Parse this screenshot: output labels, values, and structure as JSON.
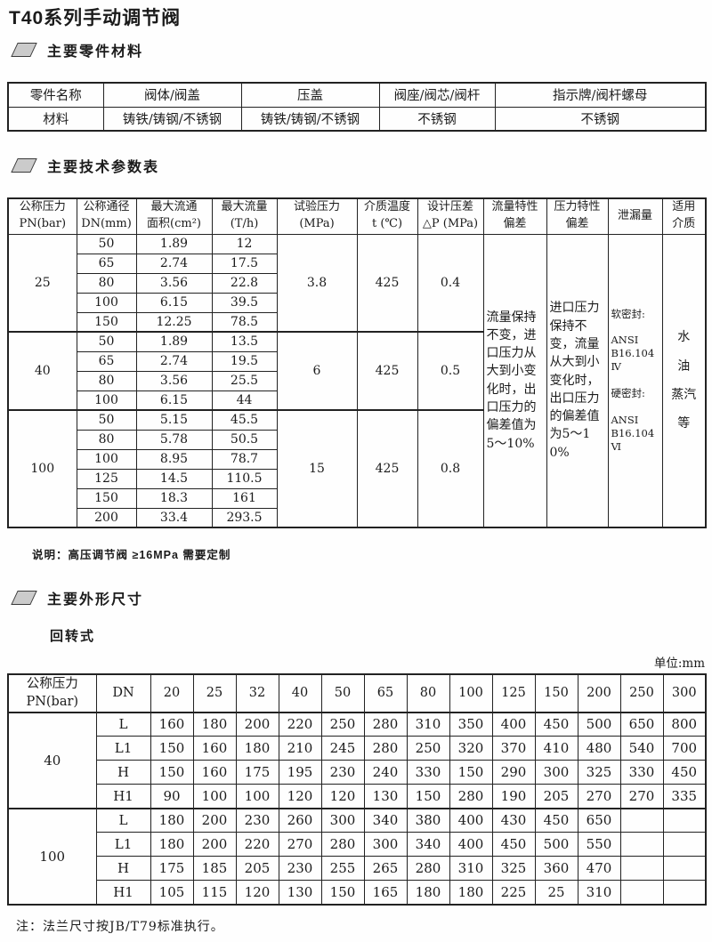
{
  "page": {
    "title": "T40系列手动调节阀",
    "unit_label": "单位:mm"
  },
  "sections": {
    "materials": {
      "heading": "主要零件材料"
    },
    "tech": {
      "heading": "主要技术参数表",
      "note": "说明：高压调节阀 ≥16MPa 需要定制"
    },
    "dims": {
      "heading": "主要外形尺寸",
      "subheading": "回转式",
      "note": "注：法兰尺寸按JB/T79标准执行。"
    }
  },
  "materials_table": {
    "rows": [
      [
        "零件名称",
        "阀体/阀盖",
        "压盖",
        "阀座/阀芯/阀杆",
        "指示牌/阀杆螺母"
      ],
      [
        "材料",
        "铸铁/铸钢/不锈钢",
        "铸铁/铸钢/不锈钢",
        "不锈钢",
        "不锈钢"
      ]
    ]
  },
  "tech_table": {
    "headers": [
      "公称压力\nPN(bar)",
      "公称通径\nDN(mm)",
      "最大流通\n面积(cm²)",
      "最大流量\n(T/h)",
      "试验压力\n(MPa)",
      "介质温度\nt (℃)",
      "设计压差\n△P (MPa)",
      "流量特性\n偏差",
      "压力特性\n偏差",
      "泄漏量",
      "适用\n介质"
    ],
    "groups": [
      {
        "pn": "25",
        "test_pressure": "3.8",
        "temp": "425",
        "dp": "0.4",
        "rows": [
          [
            "50",
            "1.89",
            "12"
          ],
          [
            "65",
            "2.74",
            "17.5"
          ],
          [
            "80",
            "3.56",
            "22.8"
          ],
          [
            "100",
            "6.15",
            "39.5"
          ],
          [
            "150",
            "12.25",
            "78.5"
          ]
        ]
      },
      {
        "pn": "40",
        "test_pressure": "6",
        "temp": "425",
        "dp": "0.5",
        "rows": [
          [
            "50",
            "1.89",
            "13.5"
          ],
          [
            "65",
            "2.74",
            "19.5"
          ],
          [
            "80",
            "3.56",
            "25.5"
          ],
          [
            "100",
            "6.15",
            "44"
          ]
        ]
      },
      {
        "pn": "100",
        "test_pressure": "15",
        "temp": "425",
        "dp": "0.8",
        "rows": [
          [
            "50",
            "5.15",
            "45.5"
          ],
          [
            "80",
            "5.78",
            "50.5"
          ],
          [
            "100",
            "8.95",
            "78.7"
          ],
          [
            "125",
            "14.5",
            "110.5"
          ],
          [
            "150",
            "18.3",
            "161"
          ],
          [
            "200",
            "33.4",
            "293.5"
          ]
        ]
      }
    ],
    "flow_deviation": "流量保持不变，进口压力从大到小变化时，出口压力的偏差值为5～10%",
    "pressure_deviation": "进口压力保持不变，流量从大到小变化时，出口压力的偏差值为5～10%",
    "leakage": "软密封:\n\nANSI\nB16.104\nⅣ\n\n硬密封:\n\nANSI\nB16.104\nⅥ",
    "media": "水\n油\n蒸汽\n等"
  },
  "dims_table": {
    "corner": "公称压力\nPN(bar)",
    "dn_label": "DN",
    "dn_values": [
      "20",
      "25",
      "32",
      "40",
      "50",
      "65",
      "80",
      "100",
      "125",
      "150",
      "200",
      "250",
      "300"
    ],
    "groups": [
      {
        "pn": "40",
        "rows": [
          {
            "label": "L",
            "values": [
              "160",
              "180",
              "200",
              "220",
              "250",
              "280",
              "310",
              "350",
              "400",
              "450",
              "500",
              "650",
              "800"
            ]
          },
          {
            "label": "L1",
            "values": [
              "150",
              "160",
              "180",
              "210",
              "245",
              "280",
              "250",
              "320",
              "370",
              "410",
              "480",
              "540",
              "700"
            ]
          },
          {
            "label": "H",
            "values": [
              "150",
              "160",
              "175",
              "195",
              "230",
              "240",
              "330",
              "150",
              "290",
              "300",
              "325",
              "330",
              "450"
            ]
          },
          {
            "label": "H1",
            "values": [
              "90",
              "100",
              "100",
              "120",
              "120",
              "130",
              "150",
              "280",
              "190",
              "205",
              "270",
              "270",
              "335"
            ]
          }
        ]
      },
      {
        "pn": "100",
        "rows": [
          {
            "label": "L",
            "values": [
              "180",
              "200",
              "230",
              "260",
              "300",
              "340",
              "380",
              "400",
              "430",
              "450",
              "650",
              "",
              ""
            ]
          },
          {
            "label": "L1",
            "values": [
              "180",
              "200",
              "220",
              "270",
              "280",
              "300",
              "340",
              "400",
              "450",
              "500",
              "550",
              "",
              ""
            ]
          },
          {
            "label": "H",
            "values": [
              "175",
              "185",
              "205",
              "230",
              "255",
              "265",
              "280",
              "310",
              "325",
              "360",
              "470",
              "",
              ""
            ]
          },
          {
            "label": "H1",
            "values": [
              "105",
              "115",
              "120",
              "130",
              "150",
              "165",
              "180",
              "180",
              "225",
              "25",
              "310",
              "",
              ""
            ]
          }
        ]
      }
    ]
  }
}
